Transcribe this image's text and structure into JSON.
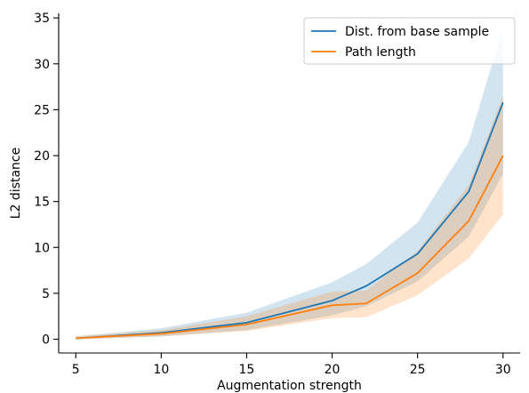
{
  "chart_data": {
    "type": "line",
    "xlabel": "Augmentation strength",
    "ylabel": "L2 distance",
    "xlim": [
      4,
      31
    ],
    "ylim": [
      -1.5,
      35.5
    ],
    "xticks": [
      5,
      10,
      15,
      20,
      25,
      30
    ],
    "yticks": [
      0,
      5,
      10,
      15,
      20,
      25,
      30,
      35
    ],
    "grid": false,
    "legend_position": "top-right",
    "x": [
      5,
      10,
      15,
      20,
      22,
      25,
      28,
      30
    ],
    "series": [
      {
        "name": "Dist. from base sample",
        "color": "#1f77b4",
        "band_color": "#1f77b4",
        "values": [
          0.1,
          0.7,
          1.8,
          4.2,
          5.8,
          9.3,
          16.1,
          25.8
        ],
        "upper": [
          0.3,
          1.2,
          2.9,
          6.2,
          8.2,
          12.7,
          21.5,
          34.0
        ],
        "lower": [
          0.0,
          0.3,
          1.0,
          2.6,
          3.6,
          6.3,
          11.2,
          18.0
        ]
      },
      {
        "name": "Path length",
        "color": "#ff7f0e",
        "band_color": "#ff7f0e",
        "values": [
          0.1,
          0.6,
          1.6,
          3.7,
          3.9,
          7.2,
          12.9,
          20.0
        ],
        "upper": [
          0.3,
          1.0,
          2.5,
          5.2,
          5.3,
          9.6,
          16.8,
          26.5
        ],
        "lower": [
          0.0,
          0.3,
          0.9,
          2.3,
          2.4,
          4.8,
          8.8,
          13.6
        ]
      }
    ]
  }
}
